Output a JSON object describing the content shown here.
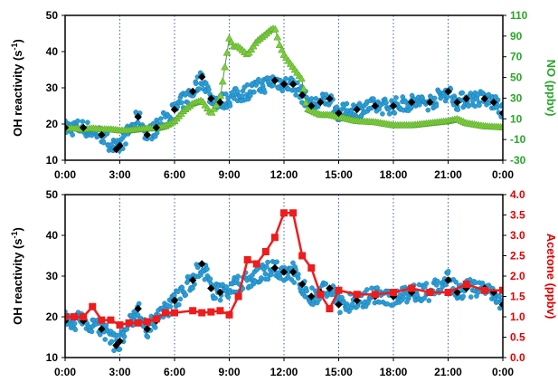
{
  "colors": {
    "oh_points": "#2a9fd6",
    "oh_points_edge": "#1a6fa8",
    "oh_hourly": "#000000",
    "no_series": "#7ccd3a",
    "no_axis": "#2aa52a",
    "acetone_series": "#ee1c1c",
    "acetone_axis": "#e00000",
    "grid": "#3a5fb0"
  },
  "chart_data": [
    {
      "type": "scatter",
      "x_ticks": [
        "0:00",
        "3:00",
        "6:00",
        "9:00",
        "12:00",
        "15:00",
        "18:00",
        "21:00",
        "0:00"
      ],
      "xlim": [
        0,
        24
      ],
      "ylabel": "OH reactivity (s",
      "ylabel_sup": "-1",
      "ylabel_tail": ")",
      "ylim": [
        10,
        50
      ],
      "y_ticks": [
        "10",
        "20",
        "30",
        "40",
        "50"
      ],
      "y2label": "NO (ppbv)",
      "y2lim": [
        -30,
        110
      ],
      "y2_ticks": [
        "-30",
        "-10",
        "10",
        "30",
        "50",
        "70",
        "90",
        "110"
      ],
      "grid": "vertical dotted",
      "series": [
        {
          "role": "oh_hourly_markers",
          "x": [
            0,
            1,
            2,
            2.8,
            3,
            4,
            4.5,
            5,
            6,
            7,
            7.5,
            8,
            8.5,
            11.5,
            12,
            12.5,
            13,
            13.5,
            14,
            14.5,
            15,
            16,
            17,
            18,
            19,
            20,
            21,
            21.5,
            22,
            23,
            23.5,
            24
          ],
          "y": [
            19,
            19,
            17,
            13,
            14,
            22,
            17,
            19,
            24,
            29,
            33,
            27,
            26,
            32,
            31,
            31,
            28,
            25,
            26,
            27,
            23,
            24,
            25,
            25,
            26,
            26,
            29,
            26,
            27,
            27,
            26,
            23
          ]
        },
        {
          "role": "no_series",
          "x": [
            0,
            0.5,
            1,
            1.5,
            2,
            2.5,
            3,
            3.5,
            4,
            4.5,
            5,
            5.5,
            6,
            6.5,
            7,
            7.5,
            8,
            8.5,
            9,
            9.25,
            9.5,
            10,
            10.5,
            11,
            11.25,
            11.5,
            11.75,
            12,
            12.5,
            13,
            13.25,
            13.5,
            14,
            14.5,
            15,
            16,
            17,
            18,
            19,
            20,
            21,
            21.5,
            22,
            23,
            24
          ],
          "y": [
            1,
            1,
            0,
            1,
            0,
            0,
            -1,
            -1,
            0,
            1,
            1,
            3,
            8,
            18,
            25,
            28,
            15,
            30,
            88,
            80,
            80,
            72,
            85,
            92,
            96,
            98,
            82,
            72,
            60,
            48,
            20,
            18,
            14,
            14,
            12,
            8,
            7,
            4,
            4,
            6,
            8,
            10,
            6,
            3,
            2
          ]
        }
      ]
    },
    {
      "type": "line",
      "x_ticks": [
        "0:00",
        "3:00",
        "6:00",
        "9:00",
        "12:00",
        "15:00",
        "18:00",
        "21:00",
        "0:00"
      ],
      "xlim": [
        0,
        24
      ],
      "ylabel": "OH reactivity (s",
      "ylabel_sup": "-1",
      "ylabel_tail": ")",
      "ylim": [
        10,
        50
      ],
      "y_ticks": [
        "10",
        "20",
        "30",
        "40",
        "50"
      ],
      "y2label": "Acetone (ppbv)",
      "y2lim": [
        0,
        4
      ],
      "y2_ticks": [
        "0.0",
        "0.5",
        "1.0",
        "1.5",
        "2.0",
        "2.5",
        "3.0",
        "3.5",
        "4.0"
      ],
      "grid": "vertical dotted",
      "series": [
        {
          "role": "oh_hourly_markers",
          "x": [
            0,
            1,
            2,
            2.8,
            3,
            4,
            4.5,
            5,
            6,
            7,
            7.5,
            8,
            8.5,
            11.5,
            12,
            12.5,
            13,
            13.5,
            14,
            14.5,
            15,
            16,
            17,
            18,
            19,
            20,
            21,
            21.5,
            22,
            23,
            23.5,
            24
          ],
          "y": [
            19,
            19,
            17,
            13,
            14,
            22,
            17,
            19,
            24,
            29,
            33,
            27,
            26,
            32,
            31,
            31,
            28,
            25,
            26,
            27,
            23,
            24,
            25,
            25,
            26,
            26,
            29,
            26,
            27,
            27,
            26,
            23
          ]
        },
        {
          "role": "acetone_series",
          "x": [
            0,
            0.5,
            1,
            1.5,
            2,
            2.5,
            3,
            3.5,
            4,
            4.5,
            5,
            5.5,
            6,
            7,
            7.5,
            8,
            8.5,
            9,
            9.5,
            10,
            10.5,
            11,
            11.5,
            12,
            12.5,
            13,
            13.5,
            14,
            14.5,
            15,
            16,
            17,
            18,
            19,
            20,
            21,
            22,
            23,
            24
          ],
          "y": [
            1.0,
            1.0,
            1.0,
            1.25,
            0.92,
            0.92,
            0.8,
            0.85,
            0.85,
            0.88,
            0.95,
            1.1,
            1.1,
            1.15,
            1.1,
            1.12,
            1.15,
            1.05,
            1.5,
            2.4,
            2.3,
            2.6,
            2.95,
            3.55,
            3.55,
            2.5,
            2.2,
            1.55,
            1.2,
            1.65,
            1.55,
            1.55,
            1.6,
            1.7,
            1.6,
            1.6,
            1.8,
            1.65,
            1.65
          ]
        }
      ]
    }
  ]
}
